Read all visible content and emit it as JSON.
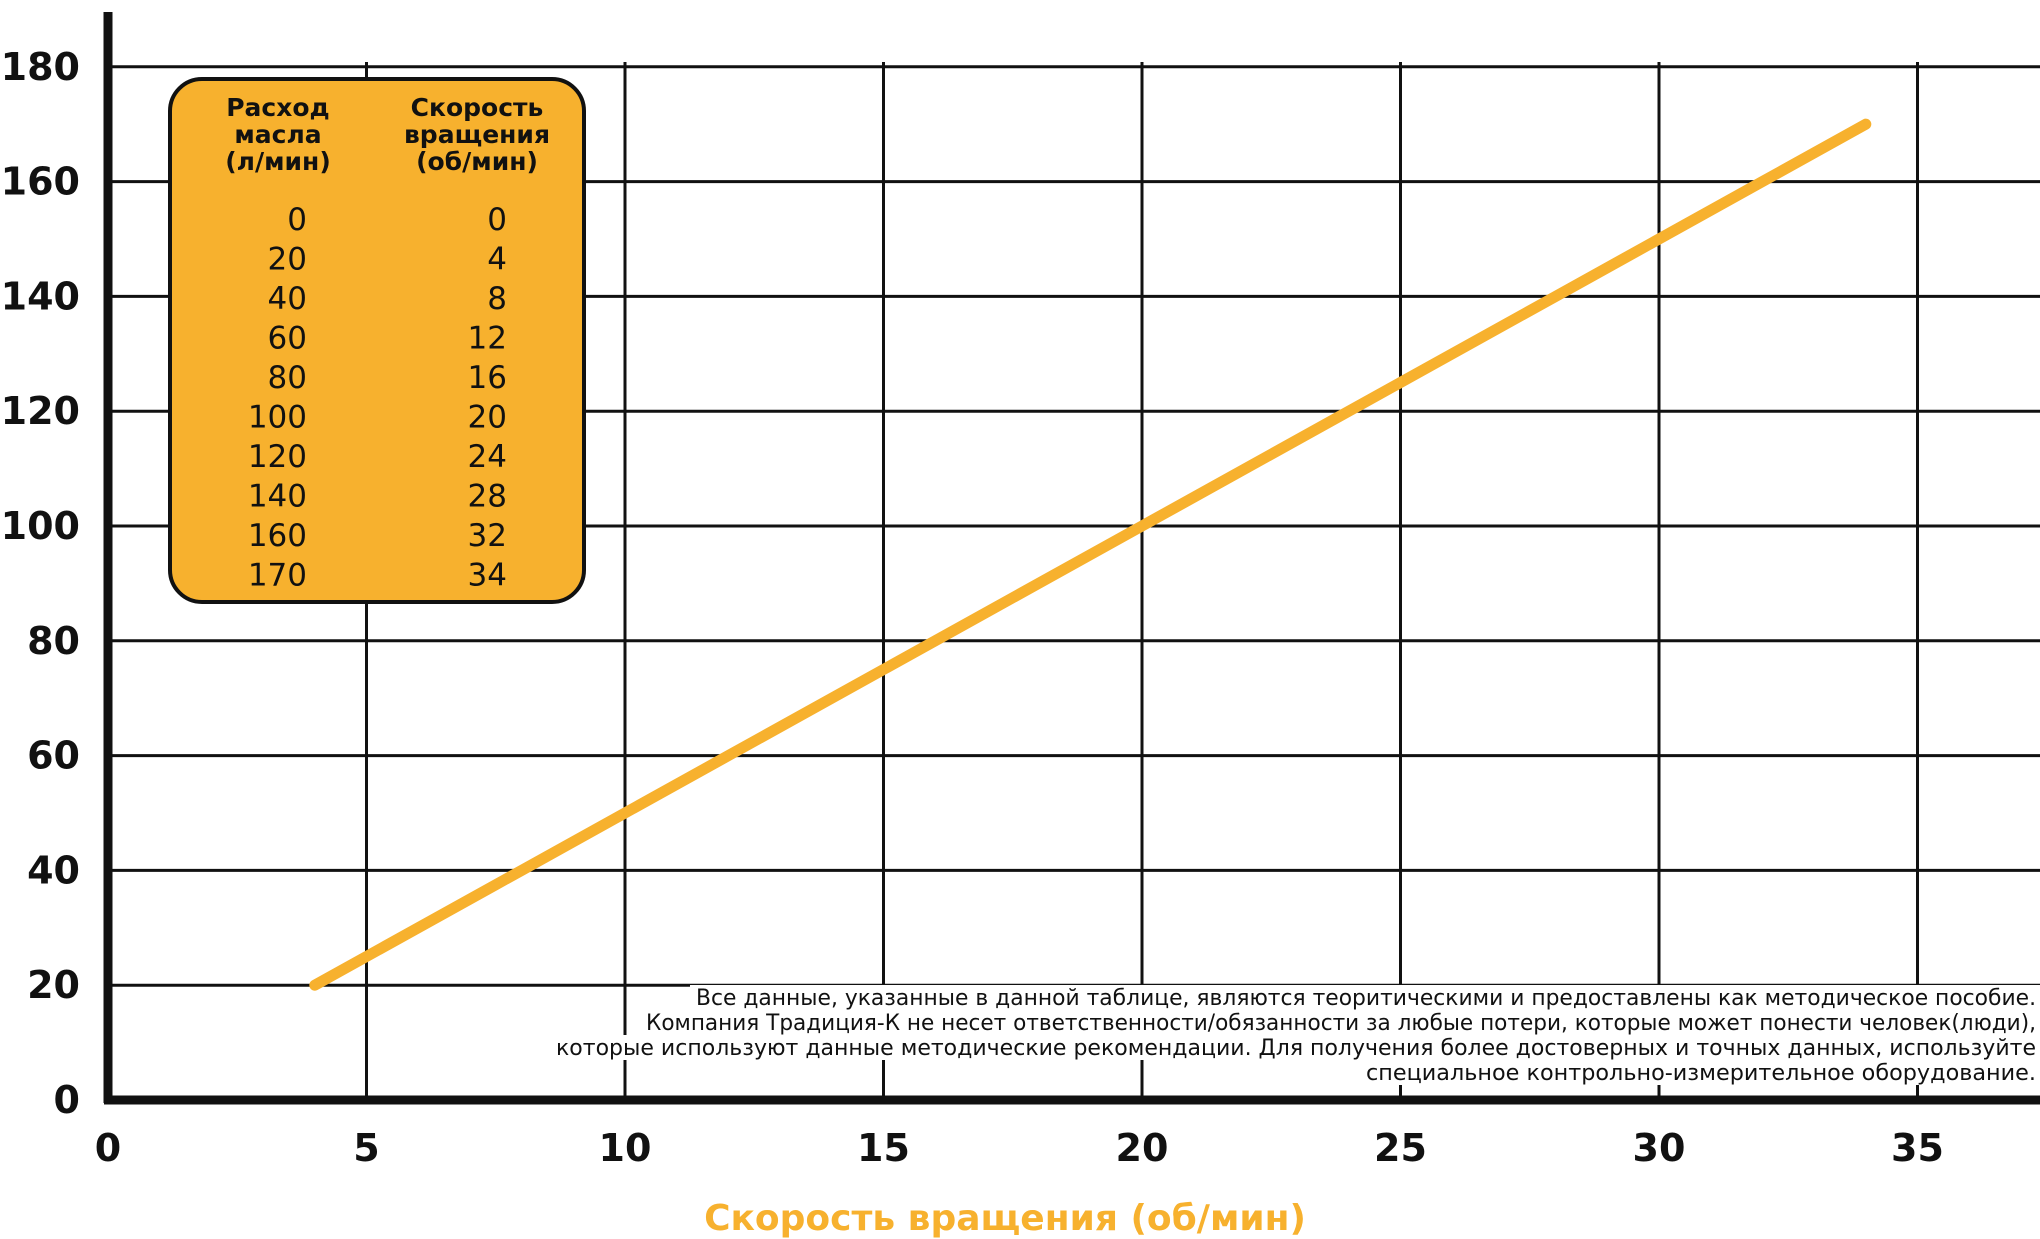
{
  "chart_data": {
    "type": "line",
    "xlabel": "Скорость вращения (об/мин)",
    "ylabel": "",
    "xlim": [
      0,
      37
    ],
    "ylim": [
      0,
      180
    ],
    "x_ticks": [
      "0",
      "5",
      "10",
      "15",
      "20",
      "25",
      "30",
      "35"
    ],
    "y_ticks": [
      "0",
      "20",
      "40",
      "60",
      "80",
      "100",
      "120",
      "140",
      "160",
      "180"
    ],
    "x_tick_values": [
      0,
      5,
      10,
      15,
      20,
      25,
      30,
      35
    ],
    "y_tick_values": [
      0,
      20,
      40,
      60,
      80,
      100,
      120,
      140,
      160,
      180
    ],
    "grid": true,
    "series": [
      {
        "x": [
          4,
          8,
          12,
          16,
          20,
          24,
          28,
          32,
          34
        ],
        "y": [
          20,
          40,
          60,
          80,
          100,
          120,
          140,
          160,
          170
        ]
      }
    ],
    "table": {
      "headers": [
        [
          "Расход",
          "масла",
          "(л/мин)"
        ],
        [
          "Скорость",
          "вращения",
          "(об/мин)"
        ]
      ],
      "rows": [
        [
          "0",
          "0"
        ],
        [
          "20",
          "4"
        ],
        [
          "40",
          "8"
        ],
        [
          "60",
          "12"
        ],
        [
          "80",
          "16"
        ],
        [
          "100",
          "20"
        ],
        [
          "120",
          "24"
        ],
        [
          "140",
          "28"
        ],
        [
          "160",
          "32"
        ],
        [
          "170",
          "34"
        ]
      ]
    },
    "annotation": [
      "Все данные, указанные в данной таблице, являются теоритическими  и предоставлены как методическое пособие.",
      "Компания Традиция-К не несет ответственности/обязанности за любые потери, которые может понести человек(люди),",
      "которые используют данные методические рекомендации. Для получения более достоверных и точных данных, используйте",
      "специальное контрольно-измерительное оборудование."
    ]
  },
  "colors": {
    "line": "#f7b12e",
    "table_fill": "#f7b12e",
    "axis_title": "#f7b12e",
    "grid": "#111111",
    "axis": "#111111"
  }
}
